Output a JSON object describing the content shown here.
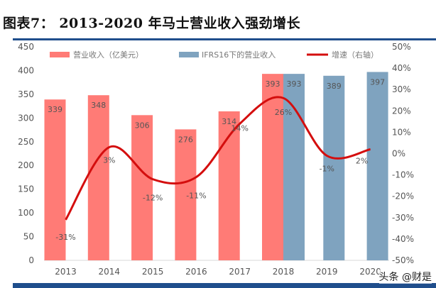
{
  "title": "图表7：  2013-2020 年马士营业收入强劲增长",
  "watermark": "头条 @财是",
  "chart_data": {
    "type": "bar",
    "title": "图表7：  2013-2020 年马士营业收入强劲增长",
    "categories": [
      "2013",
      "2014",
      "2015",
      "2016",
      "2017",
      "2018",
      "2019",
      "2020"
    ],
    "series": [
      {
        "name": "营业收入（亿美元）",
        "kind": "bar",
        "axis": "left",
        "color": "#ff7b76",
        "values": [
          339,
          348,
          306,
          276,
          314,
          393,
          null,
          null
        ],
        "labels": [
          "339",
          "348",
          "306",
          "276",
          "314",
          "393",
          "",
          ""
        ]
      },
      {
        "name": "IFRS16下的营业收入",
        "kind": "bar",
        "axis": "left",
        "color": "#7fa3bf",
        "values": [
          null,
          null,
          null,
          null,
          null,
          393,
          389,
          397
        ],
        "labels": [
          "",
          "",
          "",
          "",
          "",
          "393",
          "389",
          "397"
        ]
      },
      {
        "name": "增速（右轴）",
        "kind": "line",
        "axis": "right",
        "color": "#d40e0e",
        "values": [
          -31,
          3,
          -12,
          -11,
          14,
          26,
          -1,
          2
        ],
        "labels": [
          "-31%",
          "3%",
          "-12%",
          "-11%",
          "14%",
          "26%",
          "-1%",
          "2%"
        ]
      }
    ],
    "ylim": [
      0,
      450
    ],
    "yticks": [
      "0",
      "50",
      "100",
      "150",
      "200",
      "250",
      "300",
      "350",
      "400",
      "450"
    ],
    "y2lim": [
      -50,
      50
    ],
    "y2ticks": [
      "-50%",
      "-40%",
      "-30%",
      "-20%",
      "-10%",
      "0%",
      "10%",
      "20%",
      "30%",
      "40%",
      "50%"
    ],
    "grid": false,
    "legend": "top"
  }
}
